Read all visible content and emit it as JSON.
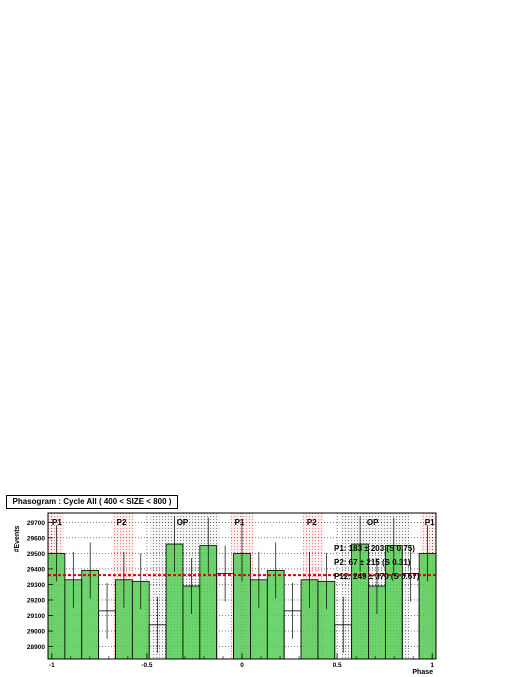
{
  "chart_data": {
    "type": "bar",
    "title": "Phasogram : Cycle All ( 400 < SIZE < 800 )",
    "xlabel": "Phase",
    "ylabel": "#Events",
    "xlim": [
      -1.02,
      1.02
    ],
    "ylim": [
      28820,
      29760
    ],
    "x_ticks": [
      -1,
      -0.5,
      0,
      0.5,
      1
    ],
    "x_tick_labels": [
      "-1",
      "-0.5",
      "0",
      "0.5",
      "1"
    ],
    "y_ticks": [
      28900,
      29000,
      29100,
      29200,
      29300,
      29400,
      29500,
      29600,
      29700
    ],
    "bin_width": 0.08,
    "bins": [
      {
        "x": -0.96,
        "value": 29500,
        "err": 180,
        "fill": true
      },
      {
        "x": -0.88,
        "value": 29330,
        "err": 180,
        "fill": true
      },
      {
        "x": -0.8,
        "value": 29390,
        "err": 180,
        "fill": true
      },
      {
        "x": -0.72,
        "value": 29130,
        "err": 180,
        "fill": false
      },
      {
        "x": -0.64,
        "value": 29330,
        "err": 180,
        "fill": true
      },
      {
        "x": -0.56,
        "value": 29320,
        "err": 180,
        "fill": true
      },
      {
        "x": -0.48,
        "value": 29040,
        "err": 180,
        "fill": false
      },
      {
        "x": -0.4,
        "value": 29560,
        "err": 180,
        "fill": true
      },
      {
        "x": -0.32,
        "value": 29290,
        "err": 180,
        "fill": true
      },
      {
        "x": -0.24,
        "value": 29550,
        "err": 180,
        "fill": true
      },
      {
        "x": -0.16,
        "value": 29370,
        "err": 180,
        "fill": false
      },
      {
        "x": -0.08,
        "value": 29500,
        "err": 180,
        "fill": true
      },
      {
        "x": 0.0,
        "value": 29330,
        "err": 180,
        "fill": true
      },
      {
        "x": 0.08,
        "value": 29390,
        "err": 180,
        "fill": true
      },
      {
        "x": 0.16,
        "value": 29130,
        "err": 180,
        "fill": false
      },
      {
        "x": 0.24,
        "value": 29330,
        "err": 180,
        "fill": true
      },
      {
        "x": 0.32,
        "value": 29320,
        "err": 180,
        "fill": true
      },
      {
        "x": 0.4,
        "value": 29040,
        "err": 180,
        "fill": false
      },
      {
        "x": 0.48,
        "value": 29560,
        "err": 180,
        "fill": true
      },
      {
        "x": 0.56,
        "value": 29290,
        "err": 180,
        "fill": true
      },
      {
        "x": 0.64,
        "value": 29550,
        "err": 180,
        "fill": true
      },
      {
        "x": 0.72,
        "value": 29370,
        "err": 180,
        "fill": false
      },
      {
        "x": 0.8,
        "value": 29500,
        "err": 180,
        "fill": true
      }
    ],
    "bins_note": "x is bin center offset such that bins span xlim; see script",
    "background_level": 29360,
    "regions": [
      {
        "label": "P1",
        "from": -1.02,
        "to": -0.94,
        "style": "p1"
      },
      {
        "label": "P2",
        "from": -0.68,
        "to": -0.57,
        "style": "p2"
      },
      {
        "label": "OP",
        "from": -0.48,
        "to": -0.12,
        "style": "op"
      },
      {
        "label": "P1",
        "from": -0.06,
        "to": 0.06,
        "style": "p1"
      },
      {
        "label": "P2",
        "from": 0.32,
        "to": 0.43,
        "style": "p2"
      },
      {
        "label": "OP",
        "from": 0.52,
        "to": 0.88,
        "style": "op"
      },
      {
        "label": "P1",
        "from": 0.94,
        "to": 1.02,
        "style": "p1"
      }
    ],
    "annotations": [
      "P1: 183 ± 203 (S 0.75)",
      "P2: 67 ± 215 (S 0.31)",
      "P12: 249 ± 370 (S 0.67)"
    ],
    "colors": {
      "fill": "#55cc55",
      "background_line": "#dd0000",
      "p_region": "#ee8888",
      "op_region": "#999999"
    }
  }
}
